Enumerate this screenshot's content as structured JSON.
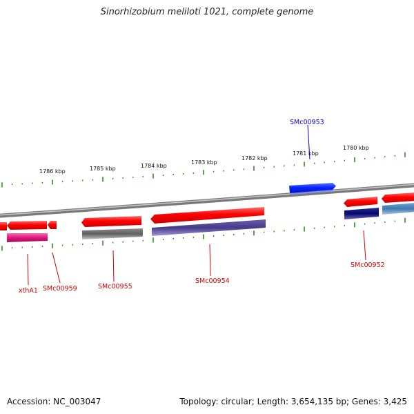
{
  "header": {
    "title": "Sinorhizobium meliloti 1021, complete genome"
  },
  "footer": {
    "accession": "Accession: NC_003047",
    "summary": "Topology: circular; Length: 3,654,135 bp; Genes: 3,425"
  },
  "colors": {
    "backbone": "#8c8c8c",
    "tick": "#2e8b1e",
    "label_forward": "#0000cc",
    "label_reverse": "#cc0000",
    "gene_red": "#ff0000",
    "gene_blue": "#0a24ff",
    "cds_magenta": "#e0157e",
    "cds_gray": "#6a6a6a",
    "cds_purple": "#4a3f8f",
    "cds_navy": "#080878",
    "cds_steel": "#4a84b8"
  },
  "scale_labels": [
    "1786 kbp",
    "1785 kbp",
    "1784 kbp",
    "1783 kbp",
    "1782 kbp",
    "1781 kbp",
    "1780 kbp"
  ],
  "gene_labels": {
    "smc00953": "SMc00953",
    "xtha1": "xthA1",
    "smc00959": "SMc00959",
    "smc00955": "SMc00955",
    "smc00954": "SMc00954",
    "smc00952": "SMc00952"
  }
}
